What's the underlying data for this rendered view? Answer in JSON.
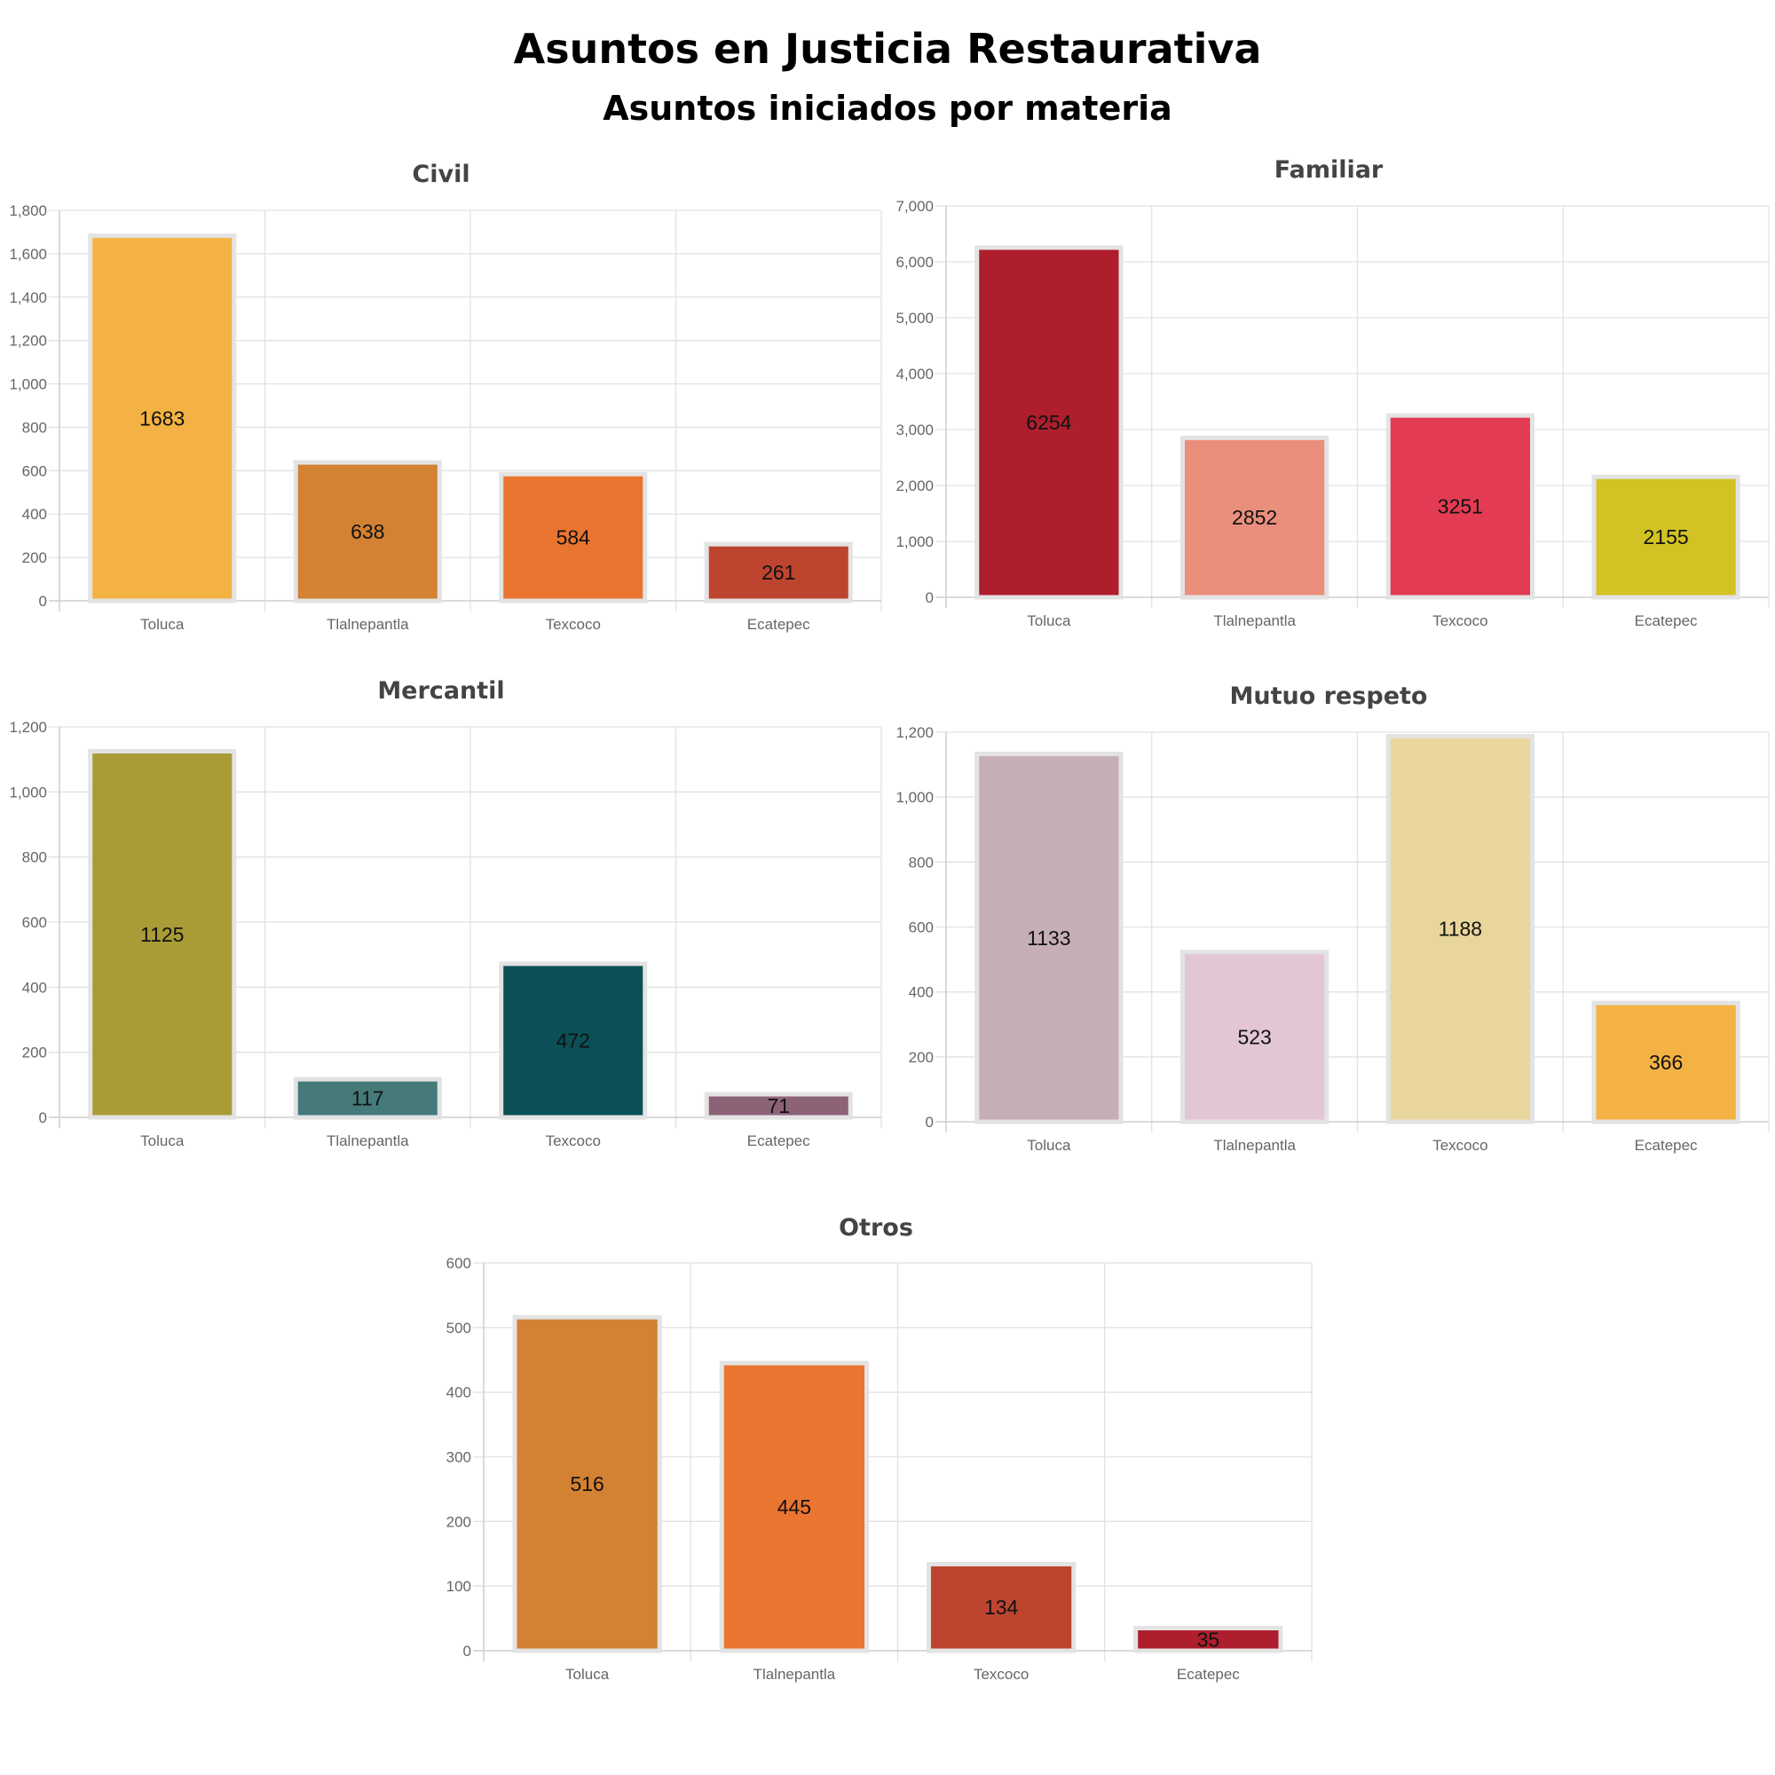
{
  "header": {
    "title": "Asuntos en Justicia Restaurativa",
    "subtitle": "Asuntos iniciados por materia"
  },
  "chart_data": [
    {
      "type": "bar",
      "title": "Civil",
      "categories": [
        "Toluca",
        "Tlalnepantla",
        "Texcoco",
        "Ecatepec"
      ],
      "values": [
        1683,
        638,
        584,
        261
      ],
      "data_labels": [
        "1683",
        "638",
        "584",
        "261"
      ],
      "colors": [
        "#F3B243",
        "#D38133",
        "#EA7530",
        "#BD4530"
      ],
      "ylim": [
        0,
        1800
      ],
      "yticks": [
        0,
        200,
        400,
        600,
        800,
        1000,
        1200,
        1400,
        1600,
        1800
      ],
      "ytick_labels": [
        "0",
        "200",
        "400",
        "600",
        "800",
        "1,000",
        "1,200",
        "1,400",
        "1,600",
        "1,800"
      ],
      "grid": true,
      "xlabel": "",
      "ylabel": ""
    },
    {
      "type": "bar",
      "title": "Familiar",
      "categories": [
        "Toluca",
        "Tlalnepantla",
        "Texcoco",
        "Ecatepec"
      ],
      "values": [
        6254,
        2852,
        3251,
        2155
      ],
      "data_labels": [
        "6254",
        "2852",
        "3251",
        "2155"
      ],
      "colors": [
        "#AE1E2D",
        "#EB8F7D",
        "#E23B53",
        "#D2C224"
      ],
      "ylim": [
        0,
        7000
      ],
      "yticks": [
        0,
        1000,
        2000,
        3000,
        4000,
        5000,
        6000,
        7000
      ],
      "ytick_labels": [
        "0",
        "1,000",
        "2,000",
        "3,000",
        "4,000",
        "5,000",
        "6,000",
        "7,000"
      ],
      "grid": true,
      "xlabel": "",
      "ylabel": ""
    },
    {
      "type": "bar",
      "title": "Mercantil",
      "categories": [
        "Toluca",
        "Tlalnepantla",
        "Texcoco",
        "Ecatepec"
      ],
      "values": [
        1125,
        117,
        472,
        71
      ],
      "data_labels": [
        "1125",
        "117",
        "472",
        "71"
      ],
      "colors": [
        "#A99C36",
        "#467A7A",
        "#0A5056",
        "#8C6277"
      ],
      "ylim": [
        0,
        1200
      ],
      "yticks": [
        0,
        200,
        400,
        600,
        800,
        1000,
        1200
      ],
      "ytick_labels": [
        "0",
        "200",
        "400",
        "600",
        "800",
        "1,000",
        "1,200"
      ],
      "grid": true,
      "xlabel": "",
      "ylabel": ""
    },
    {
      "type": "bar",
      "title": "Mutuo respeto",
      "categories": [
        "Toluca",
        "Tlalnepantla",
        "Texcoco",
        "Ecatepec"
      ],
      "values": [
        1133,
        523,
        1188,
        366
      ],
      "data_labels": [
        "1133",
        "523",
        "1188",
        "366"
      ],
      "colors": [
        "#C6AEB9",
        "#E3C6D4",
        "#E8D69C",
        "#F3B243"
      ],
      "ylim": [
        0,
        1200
      ],
      "yticks": [
        0,
        200,
        400,
        600,
        800,
        1000,
        1200
      ],
      "ytick_labels": [
        "0",
        "200",
        "400",
        "600",
        "800",
        "1,000",
        "1,200"
      ],
      "grid": true,
      "xlabel": "",
      "ylabel": ""
    },
    {
      "type": "bar",
      "title": "Otros",
      "categories": [
        "Toluca",
        "Tlalnepantla",
        "Texcoco",
        "Ecatepec"
      ],
      "values": [
        516,
        445,
        134,
        35
      ],
      "data_labels": [
        "516",
        "445",
        "134",
        "35"
      ],
      "colors": [
        "#D38133",
        "#EA7530",
        "#BD4530",
        "#AE1E2D"
      ],
      "ylim": [
        0,
        600
      ],
      "yticks": [
        0,
        100,
        200,
        300,
        400,
        500,
        600
      ],
      "ytick_labels": [
        "0",
        "100",
        "200",
        "300",
        "400",
        "500",
        "600"
      ],
      "grid": true,
      "xlabel": "",
      "ylabel": ""
    }
  ]
}
